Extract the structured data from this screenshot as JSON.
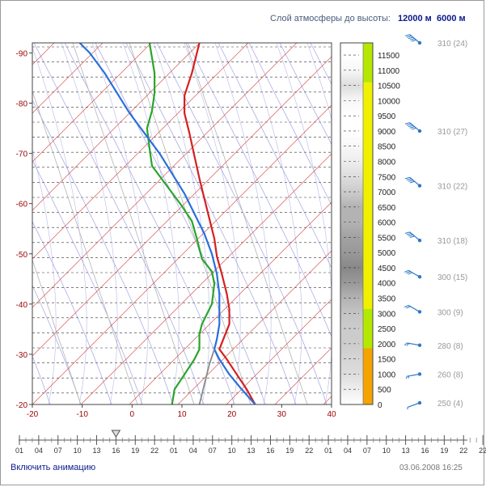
{
  "header": {
    "caption": "Слой атмосферы до высоты:",
    "link_12000": "12000 м",
    "link_6000": "6000 м"
  },
  "footer": {
    "animation_link": "Включить анимацию",
    "timestamp": "03.06.2008 16:25"
  },
  "colors": {
    "temperature": "#d42020",
    "dewpoint": "#2aa52a",
    "parcel": "#2a6fdc",
    "isotherm": "#d23c3c",
    "dry_adiabat": "#8c8cdc",
    "moist_adiabat": "#a8a8e6",
    "axis_text_red": "#990000",
    "link_blue": "#0a1a8c",
    "wind_barb": "#2a78c8"
  },
  "timeline": {
    "labels": [
      "01",
      "04",
      "07",
      "10",
      "13",
      "16",
      "19",
      "22",
      "01",
      "04",
      "07",
      "10",
      "13",
      "16",
      "19",
      "22",
      "01",
      "04",
      "07",
      "10",
      "13",
      "16",
      "19",
      "22"
    ],
    "marker_index": 5
  },
  "chart_data": {
    "type": "line",
    "xlabel": "",
    "ylabel": "",
    "xlim": [
      -20,
      40
    ],
    "ylim": [
      -20,
      -92
    ],
    "x_ticks": [
      -20,
      -10,
      0,
      10,
      20,
      30,
      40
    ],
    "y_ticks": [
      -20,
      -30,
      -40,
      -50,
      -60,
      -70,
      -80,
      -90
    ],
    "series": [
      {
        "key": "temperature",
        "points": [
          [
            24.7,
            -20
          ],
          [
            23,
            -23
          ],
          [
            21,
            -26
          ],
          [
            19,
            -29
          ],
          [
            17.5,
            -31
          ],
          [
            18.5,
            -33.5
          ],
          [
            19.5,
            -36
          ],
          [
            19.5,
            -39
          ],
          [
            19,
            -42
          ],
          [
            18,
            -46
          ],
          [
            17,
            -49.5
          ],
          [
            16.5,
            -53
          ],
          [
            15.5,
            -57
          ],
          [
            14.5,
            -61
          ],
          [
            13.5,
            -65
          ],
          [
            12.5,
            -69.5
          ],
          [
            11.5,
            -74
          ],
          [
            10.5,
            -78
          ],
          [
            10.5,
            -81.5
          ],
          [
            12,
            -86
          ],
          [
            13.5,
            -92
          ]
        ]
      },
      {
        "key": "dewpoint",
        "points": [
          [
            8,
            -20
          ],
          [
            8.5,
            -23
          ],
          [
            10.5,
            -26
          ],
          [
            12.5,
            -29
          ],
          [
            13.5,
            -31
          ],
          [
            13.5,
            -34
          ],
          [
            14,
            -36
          ],
          [
            16,
            -40
          ],
          [
            16.5,
            -44
          ],
          [
            16,
            -46.5
          ],
          [
            14,
            -49
          ],
          [
            13,
            -53
          ],
          [
            12,
            -56.5
          ],
          [
            10,
            -59.5
          ],
          [
            7,
            -63.5
          ],
          [
            4,
            -67.5
          ],
          [
            3.5,
            -71
          ],
          [
            3,
            -75
          ],
          [
            4,
            -78.5
          ],
          [
            4.5,
            -82
          ],
          [
            4.5,
            -86
          ],
          [
            4,
            -89
          ],
          [
            3.5,
            -92
          ]
        ]
      },
      {
        "key": "parcel",
        "points": [
          [
            24.7,
            -20
          ],
          [
            22,
            -23
          ],
          [
            19.5,
            -26
          ],
          [
            17.5,
            -29
          ],
          [
            16.5,
            -31
          ],
          [
            17,
            -33
          ],
          [
            17.5,
            -36
          ],
          [
            17.5,
            -39
          ],
          [
            17.5,
            -42
          ],
          [
            17,
            -46
          ],
          [
            16,
            -50
          ],
          [
            14.5,
            -54
          ],
          [
            12.5,
            -58
          ],
          [
            10.5,
            -62
          ],
          [
            8,
            -66
          ],
          [
            5.5,
            -70
          ],
          [
            2.5,
            -74
          ],
          [
            -0.5,
            -78
          ],
          [
            -3,
            -82
          ],
          [
            -5.5,
            -86
          ],
          [
            -8.5,
            -90
          ],
          [
            -10.5,
            -92
          ]
        ]
      },
      {
        "key": "parcel_dry",
        "points": [
          [
            13.5,
            -20
          ],
          [
            14.5,
            -24
          ],
          [
            15.5,
            -28
          ],
          [
            16.5,
            -31
          ]
        ]
      }
    ]
  },
  "height_column": {
    "labels": [
      "11500",
      "11000",
      "10500",
      "10000",
      "9500",
      "9000",
      "8500",
      "8000",
      "7500",
      "7000",
      "6500",
      "6000",
      "5500",
      "5000",
      "4500",
      "4000",
      "3500",
      "3000",
      "2500",
      "2000",
      "1500",
      "1000",
      "500",
      "0"
    ],
    "colored_bands": [
      {
        "from": 0,
        "to": 1850,
        "color": "#f5a300"
      },
      {
        "from": 1850,
        "to": 3150,
        "color": "#b4e800"
      },
      {
        "from": 3150,
        "to": 10600,
        "color": "#f0f000"
      },
      {
        "from": 10600,
        "to": 11900,
        "color": "#b4e800"
      }
    ],
    "cloud_profile": [
      [
        0,
        0
      ],
      [
        500,
        0.1
      ],
      [
        1000,
        0.2
      ],
      [
        1500,
        0.25
      ],
      [
        2000,
        0.3
      ],
      [
        2500,
        0.3
      ],
      [
        3000,
        0.35
      ],
      [
        3500,
        0.45
      ],
      [
        4000,
        0.6
      ],
      [
        4500,
        0.7
      ],
      [
        5000,
        0.6
      ],
      [
        5500,
        0.55
      ],
      [
        6000,
        0.45
      ],
      [
        6500,
        0.45
      ],
      [
        7000,
        0.3
      ],
      [
        7500,
        0.2
      ],
      [
        8000,
        0.1
      ],
      [
        8500,
        0.05
      ],
      [
        9000,
        0.0
      ],
      [
        9500,
        0
      ],
      [
        10000,
        0.05
      ],
      [
        10500,
        0.2
      ],
      [
        11000,
        0.05
      ],
      [
        11500,
        0
      ],
      [
        11900,
        0
      ]
    ]
  },
  "winds": [
    {
      "label": "310 (24)",
      "altitude": 11900
    },
    {
      "label": "310 (27)",
      "altitude": 9000
    },
    {
      "label": "310 (22)",
      "altitude": 7200
    },
    {
      "label": "310 (18)",
      "altitude": 5400
    },
    {
      "label": "300 (15)",
      "altitude": 4200
    },
    {
      "label": "300 (9)",
      "altitude": 3050
    },
    {
      "label": "280 (8)",
      "altitude": 1950
    },
    {
      "label": "260 (8)",
      "altitude": 1000
    },
    {
      "label": "250 (4)",
      "altitude": 0
    }
  ]
}
